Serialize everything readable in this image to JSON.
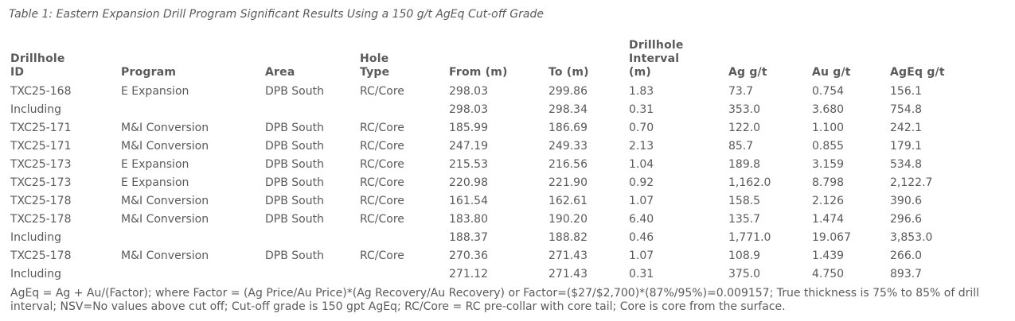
{
  "caption": "Table 1: Eastern Expansion Drill Program Significant Results Using a 150 g/t AgEq Cut-off Grade",
  "table": {
    "headers": [
      [
        "Drillhole",
        "ID"
      ],
      [
        "Program"
      ],
      [
        "Area"
      ],
      [
        "Hole",
        "Type"
      ],
      [
        "From (m)"
      ],
      [
        "To (m)"
      ],
      [
        "Drillhole",
        "Interval",
        "(m)"
      ],
      [
        "Ag g/t"
      ],
      [
        "Au g/t"
      ],
      [
        "AgEq g/t"
      ]
    ],
    "rows": [
      [
        "TXC25-168",
        "E Expansion",
        "DPB South",
        "RC/Core",
        "298.03",
        "299.86",
        "1.83",
        "73.7",
        "0.754",
        "156.1"
      ],
      [
        "Including",
        "",
        "",
        "",
        "298.03",
        "298.34",
        "0.31",
        "353.0",
        "3.680",
        "754.8"
      ],
      [
        "TXC25-171",
        "M&I Conversion",
        "DPB South",
        "RC/Core",
        "185.99",
        "186.69",
        "0.70",
        "122.0",
        "1.100",
        "242.1"
      ],
      [
        "TXC25-171",
        "M&I Conversion",
        "DPB South",
        "RC/Core",
        "247.19",
        "249.33",
        "2.13",
        "85.7",
        "0.855",
        "179.1"
      ],
      [
        "TXC25-173",
        "E Expansion",
        "DPB South",
        "RC/Core",
        "215.53",
        "216.56",
        "1.04",
        "189.8",
        "3.159",
        "534.8"
      ],
      [
        "TXC25-173",
        "E Expansion",
        "DPB South",
        "RC/Core",
        "220.98",
        "221.90",
        "0.92",
        "1,162.0",
        "8.798",
        "2,122.7"
      ],
      [
        "TXC25-178",
        "M&I Conversion",
        "DPB South",
        "RC/Core",
        "161.54",
        "162.61",
        "1.07",
        "158.5",
        "2.126",
        "390.6"
      ],
      [
        "TXC25-178",
        "M&I Conversion",
        "DPB South",
        "RC/Core",
        "183.80",
        "190.20",
        "6.40",
        "135.7",
        "1.474",
        "296.6"
      ],
      [
        "Including",
        "",
        "",
        "",
        "188.37",
        "188.82",
        "0.46",
        "1,771.0",
        "19.067",
        "3,853.0"
      ],
      [
        "TXC25-178",
        "M&I Conversion",
        "DPB South",
        "RC/Core",
        "270.36",
        "271.43",
        "1.07",
        "108.9",
        "1.439",
        "266.0"
      ],
      [
        "Including",
        "",
        "",
        "",
        "271.12",
        "271.43",
        "0.31",
        "375.0",
        "4.750",
        "893.7"
      ]
    ]
  },
  "footnote": "AgEq = Ag + Au/(Factor); where Factor = (Ag Price/Au Price)*(Ag Recovery/Au Recovery) or Factor=($27/$2,700)*(87%/95%)=0.009157; True thickness is 75% to 85% of drill interval; NSV=No values above cut off; Cut-off grade is 150 gpt AgEq; RC/Core = RC pre-collar with core tail; Core is core from the surface."
}
